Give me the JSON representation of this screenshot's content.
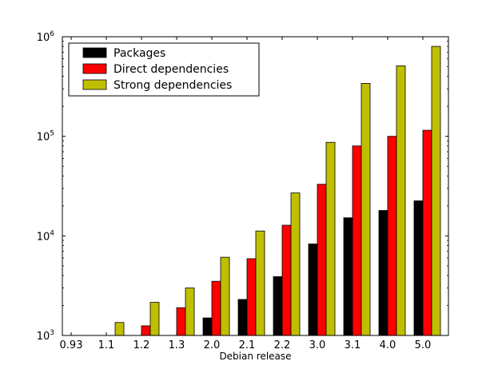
{
  "chart_data": {
    "type": "bar",
    "title": "",
    "xlabel": "Debian release",
    "ylabel": "",
    "yscale": "log",
    "ylim": [
      1000,
      1000000
    ],
    "y_ticks": [
      {
        "value": 1000,
        "base": "10",
        "exp": "3"
      },
      {
        "value": 10000,
        "base": "10",
        "exp": "4"
      },
      {
        "value": 100000,
        "base": "10",
        "exp": "5"
      },
      {
        "value": 1000000,
        "base": "10",
        "exp": "6"
      }
    ],
    "categories": [
      "0.93",
      "1.1",
      "1.2",
      "1.3",
      "2.0",
      "2.1",
      "2.2",
      "3.0",
      "3.1",
      "4.0",
      "5.0"
    ],
    "legend_position": "top-left",
    "grid": false,
    "series": [
      {
        "name": "Packages",
        "color": "#000000",
        "values": [
          null,
          null,
          null,
          null,
          1500,
          2300,
          3900,
          8300,
          15200,
          18000,
          22500
        ]
      },
      {
        "name": "Direct dependencies",
        "color": "#ff0000",
        "values": [
          null,
          null,
          1250,
          1900,
          3500,
          5900,
          12800,
          33000,
          80000,
          100000,
          115000
        ]
      },
      {
        "name": "Strong dependencies",
        "color": "#bfbf00",
        "values": [
          null,
          1350,
          2150,
          3000,
          6100,
          11200,
          27000,
          87000,
          340000,
          510000,
          800000
        ]
      }
    ]
  }
}
